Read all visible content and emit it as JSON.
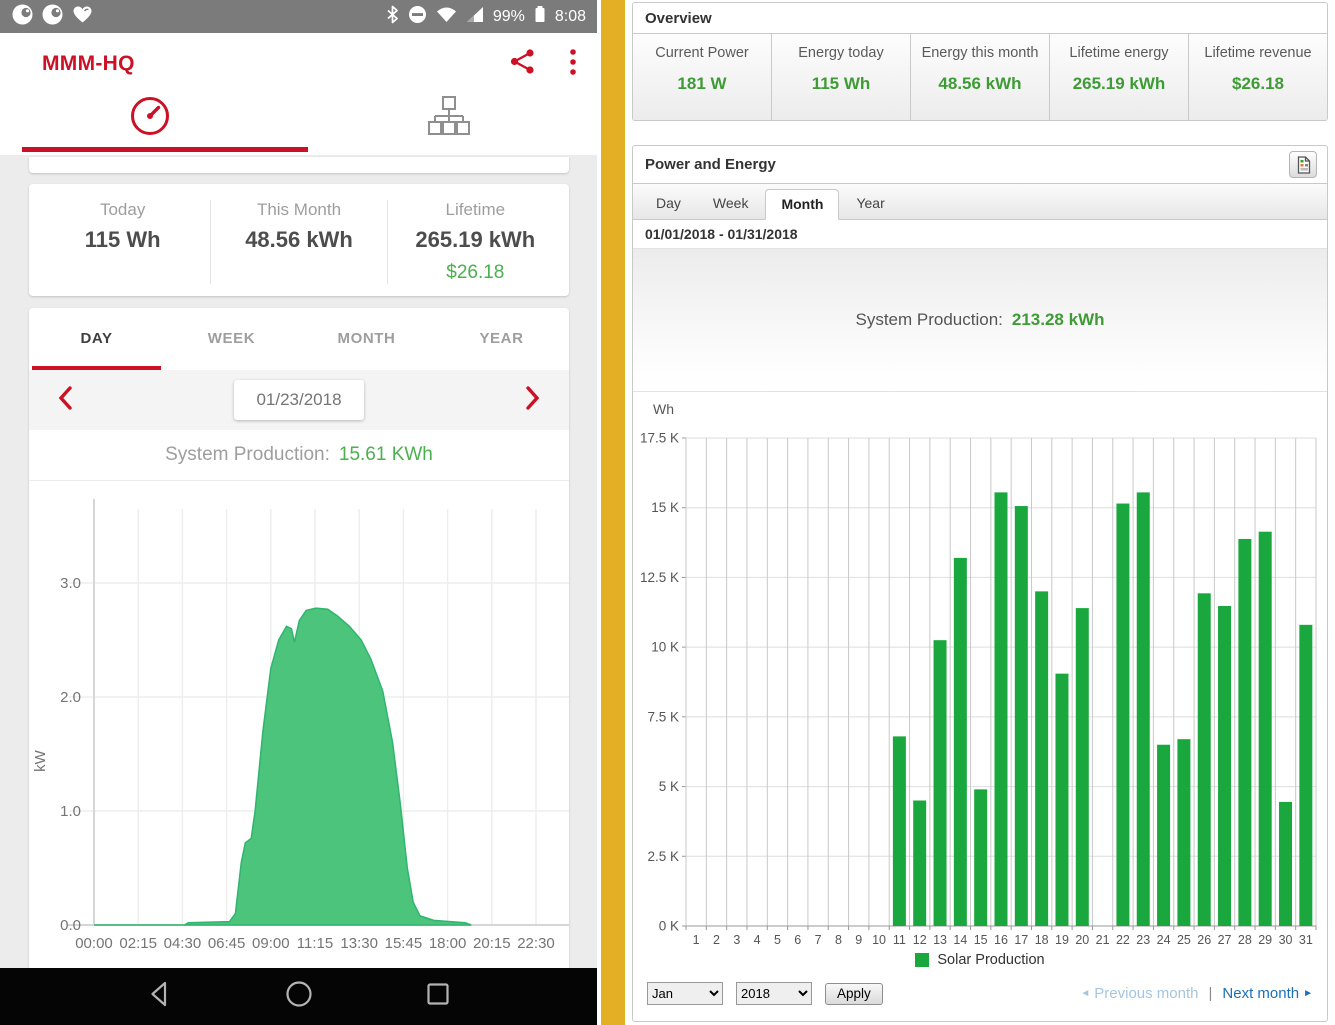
{
  "phone": {
    "status_bar": {
      "battery": "99%",
      "time": "8:08"
    },
    "app_title": "MMM-HQ",
    "stats": {
      "columns": [
        {
          "label": "Today",
          "value": "115 Wh",
          "revenue": ""
        },
        {
          "label": "This Month",
          "value": "48.56 kWh",
          "revenue": ""
        },
        {
          "label": "Lifetime",
          "value": "265.19 kWh",
          "revenue": "$26.18"
        }
      ]
    },
    "tabs": [
      "DAY",
      "WEEK",
      "MONTH",
      "YEAR"
    ],
    "active_tab": "DAY",
    "date": "01/23/2018",
    "production": {
      "label": "System Production:",
      "value": "15.61 KWh"
    }
  },
  "web": {
    "overview": {
      "title": "Overview",
      "metrics": [
        {
          "label": "Current Power",
          "value": "181 W"
        },
        {
          "label": "Energy today",
          "value": "115 Wh"
        },
        {
          "label": "Energy this month",
          "value": "48.56 kWh"
        },
        {
          "label": "Lifetime energy",
          "value": "265.19 kWh"
        },
        {
          "label": "Lifetime revenue",
          "value": "$26.18"
        }
      ]
    },
    "power_energy": {
      "title": "Power and Energy",
      "tabs": [
        "Day",
        "Week",
        "Month",
        "Year"
      ],
      "active_tab": "Month",
      "date_range": "01/01/2018 - 01/31/2018",
      "production": {
        "label": "System Production:",
        "value": "213.28 kWh"
      }
    },
    "legend": "Solar Production",
    "controls": {
      "month": "Jan",
      "year": "2018",
      "apply": "Apply",
      "prev": "Previous month",
      "next": "Next month"
    }
  },
  "chart_data": [
    {
      "id": "phone-day-production",
      "type": "area",
      "title": "System Production 01/23/2018",
      "ylabel": "kW",
      "x_ticks": [
        "00:00",
        "02:15",
        "04:30",
        "06:45",
        "09:00",
        "11:15",
        "13:30",
        "15:45",
        "18:00",
        "20:15",
        "22:30"
      ],
      "y_ticks": [
        "0.0",
        "1.0",
        "2.0",
        "3.0"
      ],
      "ylim": [
        0,
        3.6
      ],
      "grid": true,
      "series": [
        {
          "name": "Production",
          "points": [
            [
              0,
              0
            ],
            [
              4.6,
              0
            ],
            [
              4.8,
              0.02
            ],
            [
              6.9,
              0.03
            ],
            [
              7.2,
              0.1
            ],
            [
              7.5,
              0.55
            ],
            [
              7.7,
              0.72
            ],
            [
              8.0,
              0.76
            ],
            [
              8.2,
              1.0
            ],
            [
              8.6,
              1.7
            ],
            [
              9.0,
              2.25
            ],
            [
              9.4,
              2.5
            ],
            [
              9.8,
              2.62
            ],
            [
              10.05,
              2.6
            ],
            [
              10.2,
              2.48
            ],
            [
              10.45,
              2.67
            ],
            [
              10.8,
              2.76
            ],
            [
              11.3,
              2.78
            ],
            [
              11.9,
              2.77
            ],
            [
              12.4,
              2.71
            ],
            [
              13.0,
              2.62
            ],
            [
              13.6,
              2.5
            ],
            [
              14.1,
              2.33
            ],
            [
              14.7,
              2.05
            ],
            [
              15.2,
              1.6
            ],
            [
              15.6,
              1.05
            ],
            [
              15.95,
              0.5
            ],
            [
              16.25,
              0.2
            ],
            [
              16.6,
              0.08
            ],
            [
              17.3,
              0.04
            ],
            [
              18.9,
              0.02
            ],
            [
              19.2,
              0
            ]
          ]
        }
      ],
      "peak_kw": 2.78,
      "total": "15.61 KWh"
    },
    {
      "id": "web-month-production",
      "type": "bar",
      "title": "Solar Production January 2018",
      "ylabel": "Wh",
      "categories": [
        1,
        2,
        3,
        4,
        5,
        6,
        7,
        8,
        9,
        10,
        11,
        12,
        13,
        14,
        15,
        16,
        17,
        18,
        19,
        20,
        21,
        22,
        23,
        24,
        25,
        26,
        27,
        28,
        29,
        30,
        31
      ],
      "values": [
        0,
        0,
        0,
        0,
        0,
        0,
        0,
        0,
        0,
        0,
        6800,
        4500,
        10250,
        13200,
        4900,
        15550,
        15060,
        12000,
        9050,
        11400,
        0,
        15150,
        15550,
        6500,
        6700,
        11930,
        11475,
        13880,
        14140,
        4450,
        10800
      ],
      "y_ticks": [
        "0 K",
        "2.5 K",
        "5 K",
        "7.5 K",
        "10 K",
        "12.5 K",
        "15 K",
        "17.5 K"
      ],
      "ylim": [
        0,
        17500
      ],
      "grid": true,
      "legend": "Solar Production",
      "legend_position": "bottom",
      "total": "213.28 kWh"
    }
  ],
  "colors": {
    "phone_accent": "#cc1126",
    "phone_green": "#4caf50",
    "area_green": "#4cc47c",
    "area_stroke": "#2fb56f",
    "web_green": "#3e9b35",
    "bar_green": "#1aa83e",
    "divider_gold": "#e2af25",
    "link_blue": "#1d6fb8",
    "link_blue_muted": "#a5c6de"
  }
}
